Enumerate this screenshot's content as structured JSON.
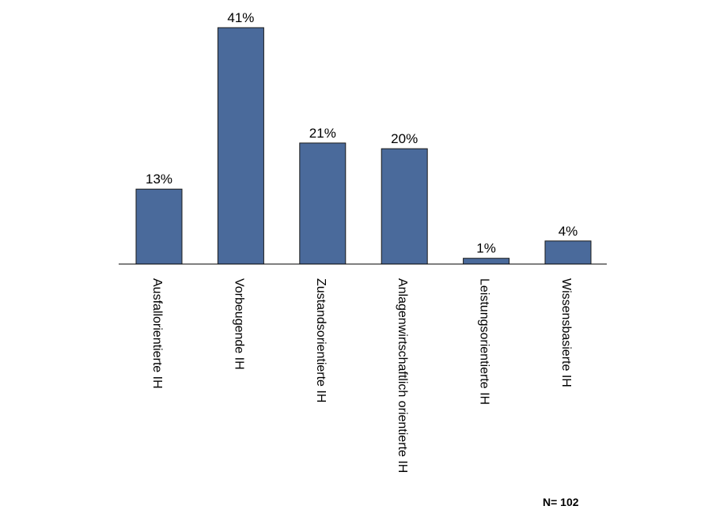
{
  "chart_data": {
    "type": "bar",
    "categories": [
      "Ausfallorientierte IH",
      "Vorbeugende IH",
      "Zustandsorientierte IH",
      "Anlagenwirtschaftlich orientierte IH",
      "Leistungsorientierte IH",
      "Wissensbasierte IH"
    ],
    "values": [
      13,
      41,
      21,
      20,
      1,
      4
    ],
    "value_labels": [
      "13%",
      "41%",
      "21%",
      "20%",
      "1%",
      "4%"
    ],
    "unit": "%",
    "ylim": [
      0,
      41
    ],
    "grid": false,
    "legend": "none",
    "title": "",
    "xlabel": "",
    "ylabel": "",
    "annotation": "N= 102",
    "bar_color": "#4a6a9b"
  }
}
